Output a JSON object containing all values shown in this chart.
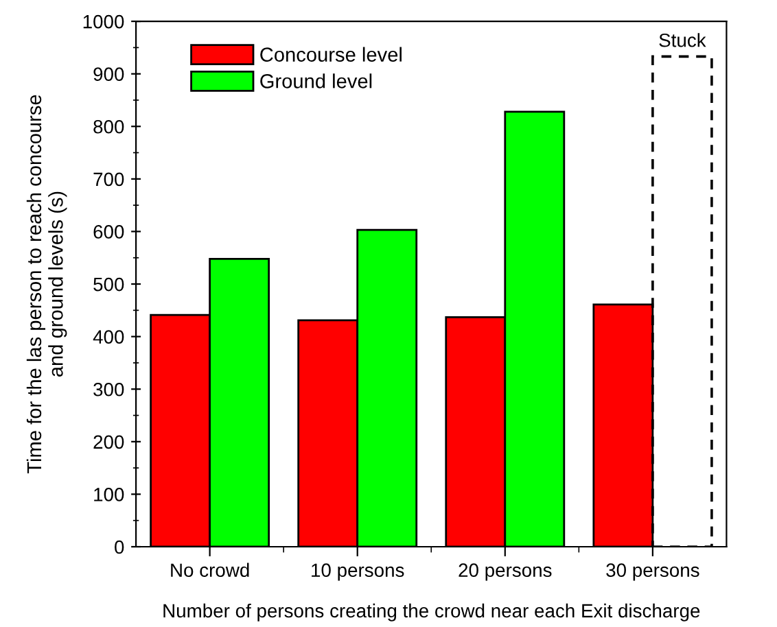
{
  "chart_data": {
    "type": "bar",
    "xlabel": "Number of persons creating the crowd near each Exit discharge",
    "ylabel": "Time for the las person to reach concourse\nand ground levels (s)",
    "categories": [
      "No crowd",
      "10 persons",
      "20 persons",
      "30 persons"
    ],
    "series": [
      {
        "name": "Concourse level",
        "color": "#ff0000",
        "values": [
          441,
          431,
          437,
          461
        ]
      },
      {
        "name": "Ground level",
        "color": "#00ff00",
        "values": [
          548,
          603,
          828,
          null
        ]
      },
      {
        "color": "#000000",
        "line_style": "dashed",
        "values": [
          null,
          null,
          null,
          933
        ],
        "value_labels": [
          null,
          null,
          null,
          "Stuck"
        ]
      }
    ],
    "ylim": [
      0,
      1000
    ],
    "yticks": [
      0,
      100,
      200,
      300,
      400,
      500,
      600,
      700,
      800,
      900,
      1000
    ],
    "grid": false,
    "legend": "top left"
  }
}
